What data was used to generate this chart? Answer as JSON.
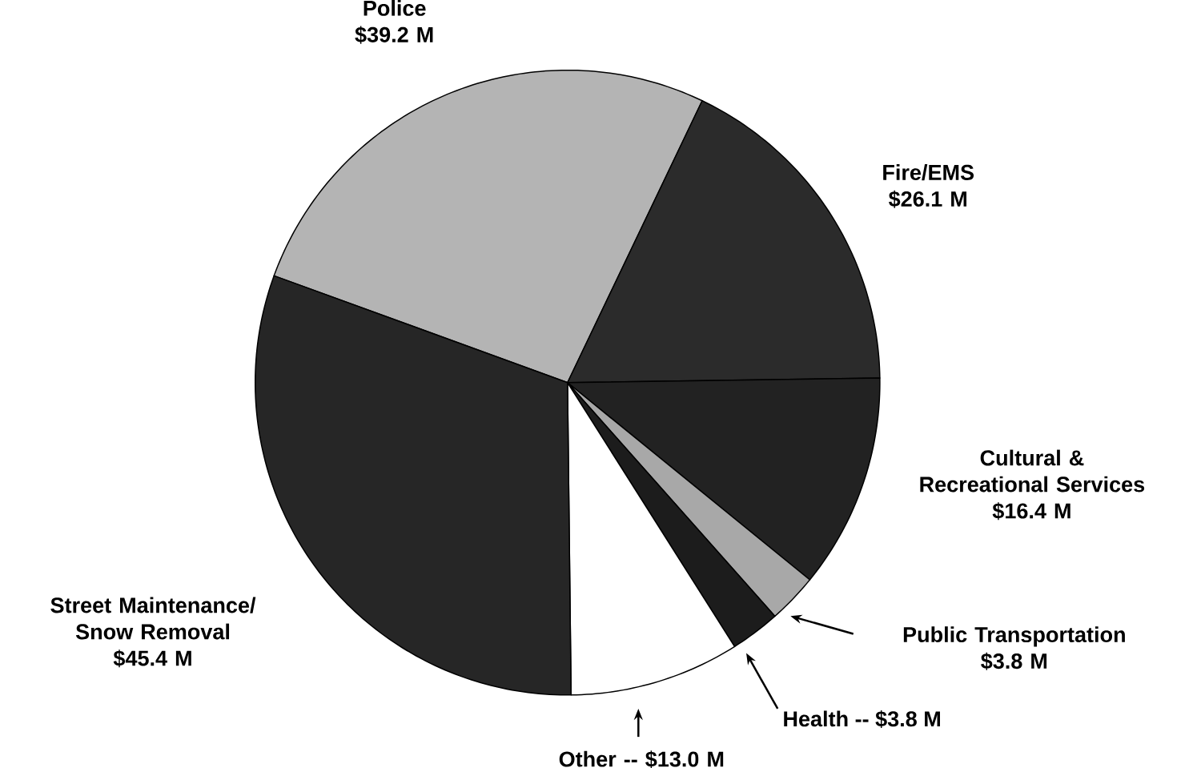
{
  "chart_data": {
    "type": "pie",
    "categories": [
      "Police",
      "Fire/EMS",
      "Cultural & Recreational Services",
      "Public Transportation",
      "Health -- $3.8 M",
      "Other -- $13.0 M",
      "Street Maintenance/ Snow Removal"
    ],
    "values": [
      39.2,
      26.1,
      16.4,
      3.8,
      3.8,
      13.0,
      45.4
    ],
    "value_labels": [
      "$39.2 M",
      "$26.1 M",
      "$16.4 M",
      "$3.8 M",
      null,
      null,
      "$45.4 M"
    ],
    "colors": [
      "#b4b4b4",
      "#2b2b2b",
      "#222222",
      "#a8a8a8",
      "#1c1c1c",
      "#ffffff",
      "#262626"
    ]
  }
}
